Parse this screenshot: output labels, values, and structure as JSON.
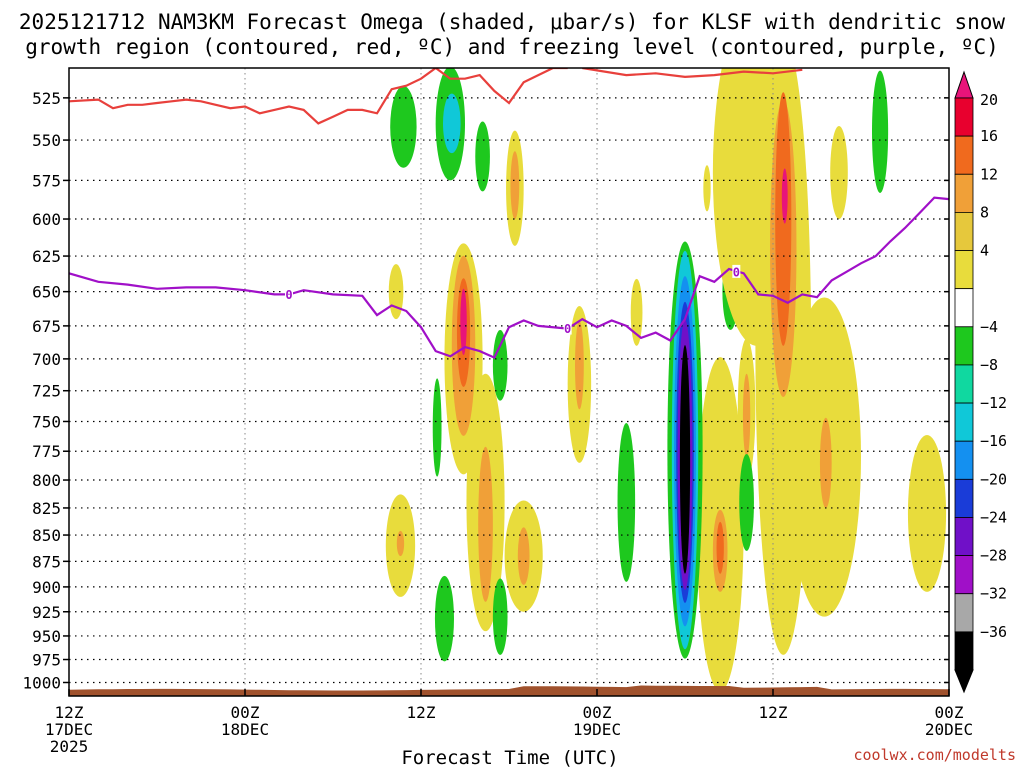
{
  "chart_data": {
    "type": "time-height",
    "title_line1": "2025121712 NAM3KM Forecast Omega (shaded, μbar/s) for KLSF with dendritic snow",
    "title_line2": "growth region (contoured, red, ºC) and freezing level (contoured, purple, ºC)",
    "xlabel": "Forecast Time (UTC)",
    "credit": "coolwx.com/modelts",
    "x_range_hours": [
      0,
      60
    ],
    "x_ticks": [
      {
        "hour": 0,
        "lines": [
          "12Z",
          "17DEC",
          "2025"
        ]
      },
      {
        "hour": 12,
        "lines": [
          "00Z",
          "18DEC"
        ]
      },
      {
        "hour": 24,
        "lines": [
          "12Z"
        ]
      },
      {
        "hour": 36,
        "lines": [
          "00Z",
          "19DEC"
        ]
      },
      {
        "hour": 48,
        "lines": [
          "12Z"
        ]
      },
      {
        "hour": 60,
        "lines": [
          "00Z",
          "20DEC"
        ]
      }
    ],
    "y_range_hpa": [
      1015,
      508
    ],
    "y_ticks": [
      525,
      550,
      575,
      600,
      625,
      650,
      675,
      700,
      725,
      750,
      775,
      800,
      825,
      850,
      875,
      900,
      925,
      950,
      975,
      1000
    ],
    "colorbar": {
      "labels": [
        "20",
        "16",
        "12",
        "8",
        "4",
        "−4",
        "−8",
        "−12",
        "−16",
        "−20",
        "−24",
        "−28",
        "−32",
        "−36"
      ],
      "colors": [
        "#e8002e",
        "#f06a1e",
        "#f0a038",
        "#e6c83c",
        "#e8dc3c",
        "#ffffff",
        "#1ec81e",
        "#10d8a0",
        "#10c8d8",
        "#1490f0",
        "#1a3cd8",
        "#7010c8",
        "#a010c8",
        "#a8a8a8",
        "#000000"
      ],
      "top_color": "#e8147a"
    },
    "omega_regions": [
      {
        "t": 22.8,
        "p": 542,
        "dt": 0.9,
        "dp": 25,
        "level": "green"
      },
      {
        "t": 26.0,
        "p": 540,
        "dt": 1.0,
        "dp": 35,
        "level": "green"
      },
      {
        "t": 26.1,
        "p": 540,
        "dt": 0.6,
        "dp": 18,
        "level": "cyan"
      },
      {
        "t": 28.2,
        "p": 560,
        "dt": 0.5,
        "dp": 22,
        "level": "green"
      },
      {
        "t": 30.4,
        "p": 580,
        "dt": 0.6,
        "dp": 38,
        "level": "yellow"
      },
      {
        "t": 30.4,
        "p": 578,
        "dt": 0.3,
        "dp": 22,
        "level": "orange"
      },
      {
        "t": 26.9,
        "p": 700,
        "dt": 1.3,
        "dp": 95,
        "level": "yellow"
      },
      {
        "t": 26.9,
        "p": 690,
        "dt": 0.8,
        "dp": 72,
        "level": "orange"
      },
      {
        "t": 26.9,
        "p": 680,
        "dt": 0.45,
        "dp": 42,
        "level": "red"
      },
      {
        "t": 26.9,
        "p": 672,
        "dt": 0.22,
        "dp": 25,
        "level": "magenta"
      },
      {
        "t": 22.3,
        "p": 650,
        "dt": 0.5,
        "dp": 20,
        "level": "yellow"
      },
      {
        "t": 25.1,
        "p": 755,
        "dt": 0.3,
        "dp": 42,
        "level": "green"
      },
      {
        "t": 28.4,
        "p": 820,
        "dt": 1.3,
        "dp": 125,
        "level": "yellow"
      },
      {
        "t": 28.4,
        "p": 840,
        "dt": 0.5,
        "dp": 75,
        "level": "orange"
      },
      {
        "t": 29.4,
        "p": 705,
        "dt": 0.5,
        "dp": 28,
        "level": "green"
      },
      {
        "t": 29.4,
        "p": 930,
        "dt": 0.5,
        "dp": 40,
        "level": "green"
      },
      {
        "t": 31.0,
        "p": 870,
        "dt": 1.3,
        "dp": 55,
        "level": "yellow"
      },
      {
        "t": 31.0,
        "p": 870,
        "dt": 0.4,
        "dp": 28,
        "level": "orange"
      },
      {
        "t": 25.6,
        "p": 932,
        "dt": 0.65,
        "dp": 45,
        "level": "green"
      },
      {
        "t": 22.6,
        "p": 860,
        "dt": 1.0,
        "dp": 50,
        "level": "yellow"
      },
      {
        "t": 22.6,
        "p": 858,
        "dt": 0.25,
        "dp": 12,
        "level": "orange"
      },
      {
        "t": 34.8,
        "p": 720,
        "dt": 0.8,
        "dp": 65,
        "level": "yellow"
      },
      {
        "t": 34.8,
        "p": 705,
        "dt": 0.3,
        "dp": 35,
        "level": "orange"
      },
      {
        "t": 38.0,
        "p": 820,
        "dt": 0.6,
        "dp": 75,
        "level": "green"
      },
      {
        "t": 38.7,
        "p": 665,
        "dt": 0.4,
        "dp": 25,
        "level": "yellow"
      },
      {
        "t": 44.4,
        "p": 840,
        "dt": 1.6,
        "dp": 170,
        "level": "yellow"
      },
      {
        "t": 44.4,
        "p": 865,
        "dt": 0.5,
        "dp": 40,
        "level": "orange"
      },
      {
        "t": 44.4,
        "p": 862,
        "dt": 0.25,
        "dp": 25,
        "level": "red"
      },
      {
        "t": 42.0,
        "p": 774,
        "dt": 1.2,
        "dp": 200,
        "level": "green"
      },
      {
        "t": 42.0,
        "p": 774,
        "dt": 0.9,
        "dp": 190,
        "level": "cyan"
      },
      {
        "t": 42.0,
        "p": 775,
        "dt": 0.75,
        "dp": 165,
        "level": "blue"
      },
      {
        "t": 42.0,
        "p": 776,
        "dt": 0.6,
        "dp": 140,
        "level": "purple"
      },
      {
        "t": 42.0,
        "p": 778,
        "dt": 0.5,
        "dp": 125,
        "level": "violet"
      },
      {
        "t": 42.0,
        "p": 782,
        "dt": 0.35,
        "dp": 105,
        "level": "black"
      },
      {
        "t": 43.5,
        "p": 580,
        "dt": 0.25,
        "dp": 15,
        "level": "yellow"
      },
      {
        "t": 45.1,
        "p": 650,
        "dt": 0.55,
        "dp": 28,
        "level": "green"
      },
      {
        "t": 46.2,
        "p": 740,
        "dt": 0.6,
        "dp": 60,
        "level": "yellow"
      },
      {
        "t": 46.2,
        "p": 745,
        "dt": 0.25,
        "dp": 35,
        "level": "orange"
      },
      {
        "t": 46.2,
        "p": 820,
        "dt": 0.5,
        "dp": 45,
        "level": "green"
      },
      {
        "t": 46.9,
        "p": 570,
        "dt": 3.0,
        "dp": 120,
        "level": "yellow"
      },
      {
        "t": 48.7,
        "p": 690,
        "dt": 1.9,
        "dp": 280,
        "level": "yellow"
      },
      {
        "t": 48.7,
        "p": 620,
        "dt": 0.9,
        "dp": 110,
        "level": "orange"
      },
      {
        "t": 48.7,
        "p": 600,
        "dt": 0.55,
        "dp": 90,
        "level": "red"
      },
      {
        "t": 48.8,
        "p": 585,
        "dt": 0.2,
        "dp": 18,
        "level": "magenta"
      },
      {
        "t": 51.5,
        "p": 780,
        "dt": 2.5,
        "dp": 150,
        "level": "yellow"
      },
      {
        "t": 51.6,
        "p": 785,
        "dt": 0.4,
        "dp": 40,
        "level": "orange"
      },
      {
        "t": 52.5,
        "p": 570,
        "dt": 0.6,
        "dp": 30,
        "level": "yellow"
      },
      {
        "t": 55.3,
        "p": 545,
        "dt": 0.55,
        "dp": 38,
        "level": "green"
      },
      {
        "t": 58.5,
        "p": 830,
        "dt": 1.3,
        "dp": 75,
        "level": "yellow"
      }
    ],
    "freezing_level": {
      "label": "0",
      "color": "#a010c8",
      "points": [
        [
          0,
          637
        ],
        [
          2,
          643
        ],
        [
          4,
          645
        ],
        [
          6,
          648
        ],
        [
          8,
          647
        ],
        [
          10,
          647
        ],
        [
          12,
          649
        ],
        [
          14,
          652
        ],
        [
          15,
          652
        ],
        [
          16,
          649
        ],
        [
          18,
          652
        ],
        [
          20,
          653
        ],
        [
          21,
          667
        ],
        [
          22,
          660
        ],
        [
          23,
          664
        ],
        [
          24,
          676
        ],
        [
          25,
          694
        ],
        [
          26,
          698
        ],
        [
          27,
          691
        ],
        [
          28,
          694
        ],
        [
          29,
          699
        ],
        [
          30,
          676
        ],
        [
          31,
          671
        ],
        [
          32,
          675
        ],
        [
          34,
          677
        ],
        [
          35,
          670
        ],
        [
          36,
          676
        ],
        [
          37,
          671
        ],
        [
          38,
          675
        ],
        [
          39,
          684
        ],
        [
          40,
          680
        ],
        [
          41,
          686
        ],
        [
          42,
          670
        ],
        [
          43,
          639
        ],
        [
          44,
          643
        ],
        [
          45,
          634
        ],
        [
          46,
          637
        ],
        [
          47,
          652
        ],
        [
          48,
          653
        ],
        [
          49,
          658
        ],
        [
          50,
          652
        ],
        [
          51,
          654
        ],
        [
          52,
          642
        ],
        [
          53,
          636
        ],
        [
          54,
          630
        ],
        [
          55,
          625
        ],
        [
          56,
          615
        ],
        [
          57,
          606
        ],
        [
          58,
          596
        ],
        [
          59,
          586
        ],
        [
          60,
          587
        ]
      ]
    },
    "dgz_boundary": {
      "color": "#e8403c",
      "points": [
        [
          0,
          527
        ],
        [
          2,
          526
        ],
        [
          3,
          531
        ],
        [
          4,
          529
        ],
        [
          5,
          529
        ],
        [
          6,
          528
        ],
        [
          7,
          527
        ],
        [
          8,
          526
        ],
        [
          9,
          527
        ],
        [
          10,
          529
        ],
        [
          11,
          531
        ],
        [
          12,
          530
        ],
        [
          13,
          534
        ],
        [
          14,
          532
        ],
        [
          15,
          530
        ],
        [
          16,
          532
        ],
        [
          17,
          540
        ],
        [
          18,
          536
        ],
        [
          19,
          532
        ],
        [
          20,
          532
        ],
        [
          21,
          534
        ],
        [
          22,
          520
        ],
        [
          23,
          518
        ],
        [
          24,
          514
        ],
        [
          25,
          508
        ],
        [
          26,
          514
        ],
        [
          27,
          514
        ],
        [
          28,
          512
        ],
        [
          29,
          521
        ],
        [
          30,
          528
        ],
        [
          31,
          516
        ],
        [
          32,
          512
        ],
        [
          33,
          508
        ],
        [
          34,
          508
        ]
      ]
    }
  }
}
